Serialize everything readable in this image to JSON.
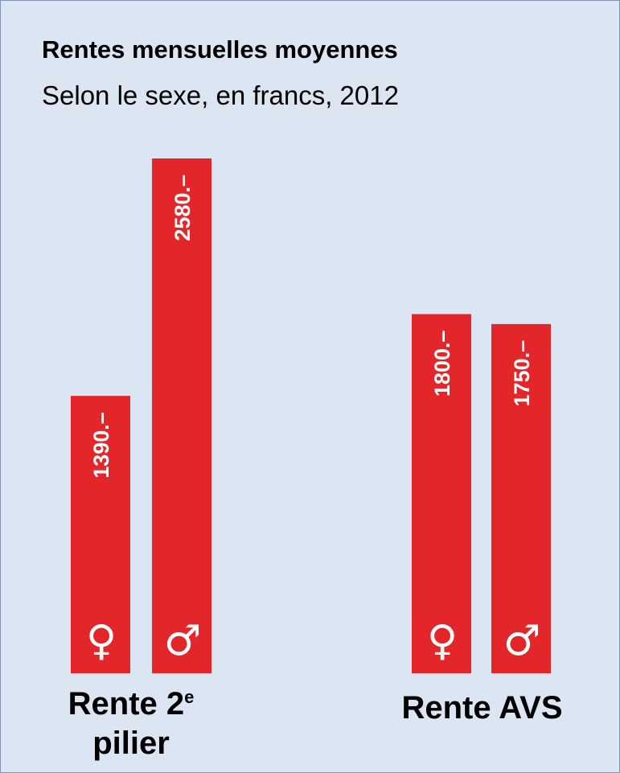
{
  "chart_data": {
    "type": "bar",
    "title": "Rentes mensuelles moyennes",
    "subtitle": "Selon le sexe, en francs, 2012",
    "categories": [
      {
        "label": "Rente 2",
        "superscript": "e",
        "label_line2": "pilier"
      },
      {
        "label": "Rente AVS"
      }
    ],
    "bars": [
      {
        "category": 0,
        "sex": "female",
        "symbol": "♀",
        "value": 1390,
        "label": "1390.–"
      },
      {
        "category": 0,
        "sex": "male",
        "symbol": "♂",
        "value": 2580,
        "label": "2580.–"
      },
      {
        "category": 1,
        "sex": "female",
        "symbol": "♀",
        "value": 1800,
        "label": "1800.–"
      },
      {
        "category": 1,
        "sex": "male",
        "symbol": "♂",
        "value": 1750,
        "label": "1750.–"
      }
    ],
    "bar_color": "#e3262a",
    "background_color": "#dce6f2",
    "ylim": [
      0,
      2580
    ],
    "grid": false,
    "legend": "none"
  }
}
